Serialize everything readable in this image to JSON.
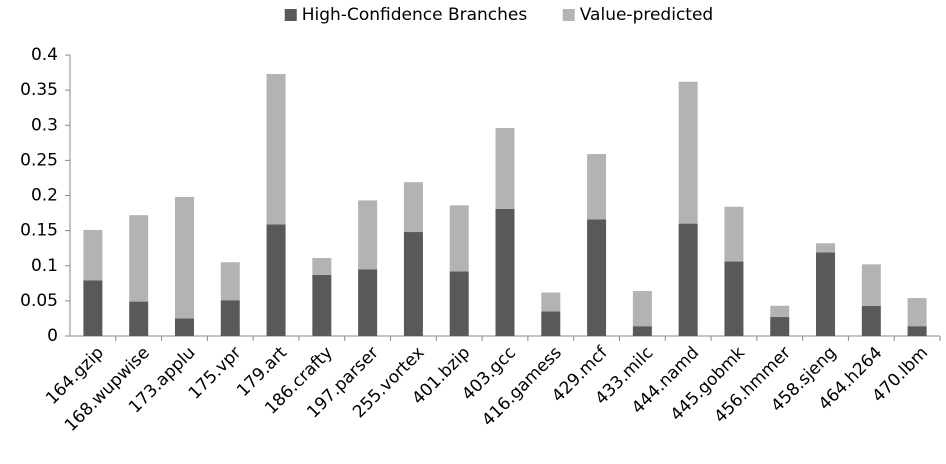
{
  "chart_data": {
    "type": "stacked_bar",
    "categories": [
      "164.gzip",
      "168.wupwise",
      "173.applu",
      "175.vpr",
      "179.art",
      "186.crafty",
      "197.parser",
      "255.vortex",
      "401.bzip",
      "403.gcc",
      "416.gamess",
      "429.mcf",
      "433.milc",
      "444.namd",
      "445.gobmk",
      "456.hmmer",
      "458.sjeng",
      "464.h264",
      "470.lbm"
    ],
    "series": [
      {
        "name": "High-Confidence Branches",
        "color": "#595959",
        "values": [
          0.079,
          0.049,
          0.025,
          0.051,
          0.159,
          0.087,
          0.095,
          0.148,
          0.092,
          0.181,
          0.035,
          0.166,
          0.014,
          0.16,
          0.106,
          0.027,
          0.119,
          0.043,
          0.014
        ]
      },
      {
        "name": "Value-predicted",
        "color": "#b3b3b3",
        "values": [
          0.072,
          0.123,
          0.173,
          0.054,
          0.214,
          0.024,
          0.098,
          0.071,
          0.094,
          0.115,
          0.027,
          0.093,
          0.05,
          0.202,
          0.078,
          0.016,
          0.013,
          0.059,
          0.04
        ]
      }
    ],
    "ylim": [
      0,
      0.4
    ],
    "yticks": [
      0,
      0.05,
      0.1,
      0.15,
      0.2,
      0.25,
      0.3,
      0.35,
      0.4
    ],
    "grid": false,
    "legend": "top"
  }
}
